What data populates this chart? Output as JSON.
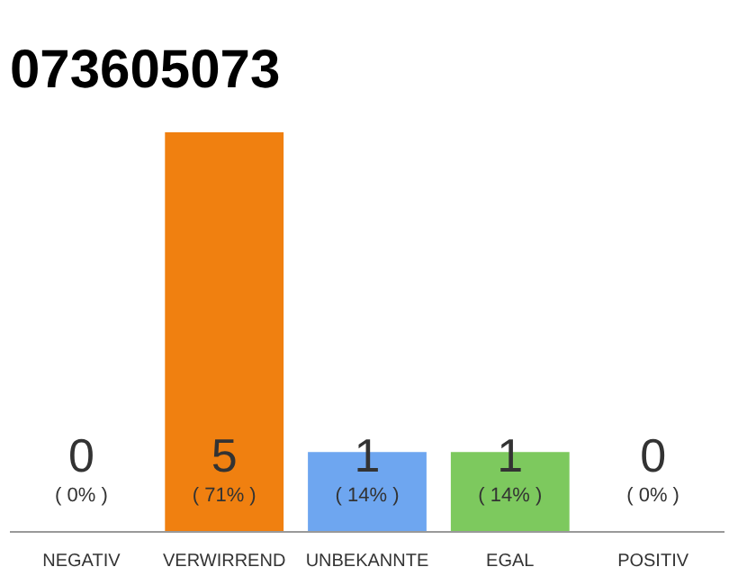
{
  "chart_data": {
    "type": "bar",
    "title": "073605073",
    "categories": [
      "NEGATIV",
      "VERWIRREND",
      "UNBEKANNTE",
      "EGAL",
      "POSITIV"
    ],
    "values": [
      0,
      5,
      1,
      1,
      0
    ],
    "colors": [
      "#cccccc",
      "#f08010",
      "#6ea6f0",
      "#7dc95e",
      "#cccccc"
    ],
    "ylim": [
      0,
      5
    ],
    "tick_labels": "x",
    "grid": false,
    "value_labels": [
      "0\n( 0% )",
      "5\n( 71% )",
      "1\n( 14% )",
      "1\n( 14% )",
      "0\n( 0% )"
    ]
  }
}
